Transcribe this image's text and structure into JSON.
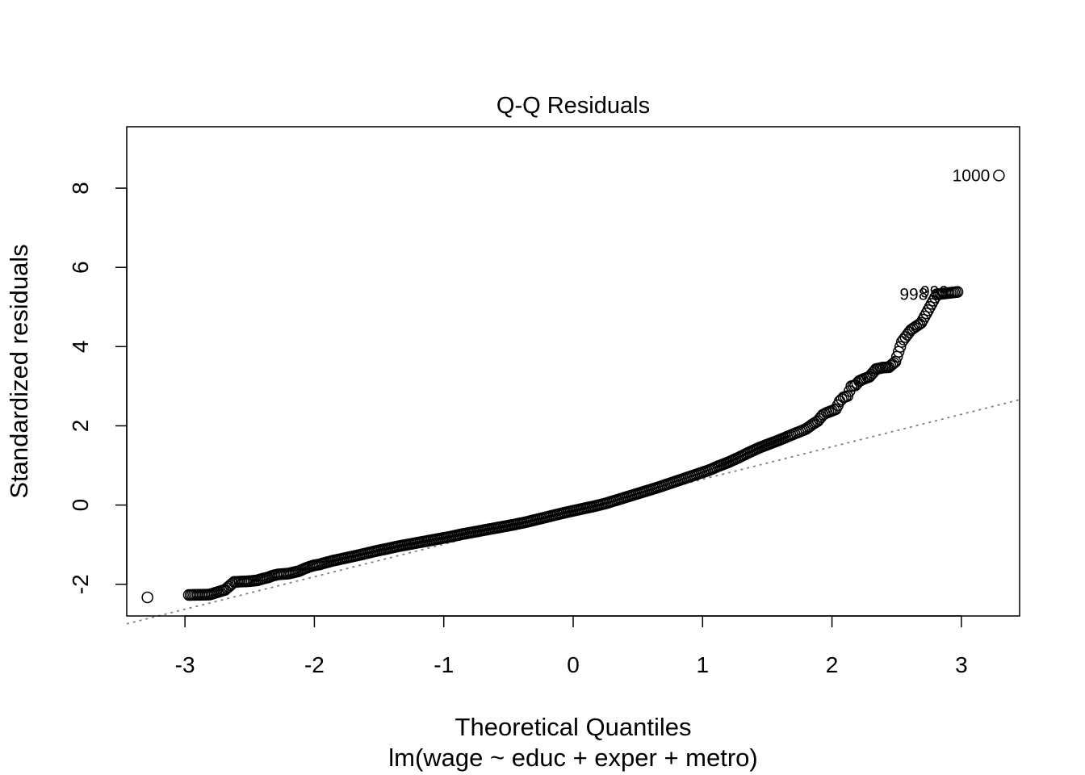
{
  "chart_data": {
    "type": "scatter",
    "title": "Q-Q Residuals",
    "xlabel": "Theoretical Quantiles",
    "subtitle": "lm(wage ~ educ + exper + metro)",
    "ylabel": "Standardized residuals",
    "xlim": [
      -3.45,
      3.45
    ],
    "ylim": [
      -2.8,
      9.55
    ],
    "x_ticks": [
      -3,
      -2,
      -1,
      0,
      1,
      2,
      3
    ],
    "x_tick_labels": [
      "-3",
      "-2",
      "-1",
      "0",
      "1",
      "2",
      "3"
    ],
    "y_ticks": [
      -2,
      0,
      2,
      4,
      6,
      8
    ],
    "y_tick_labels": [
      "-2",
      "0",
      "2",
      "4",
      "6",
      "8"
    ],
    "grid": false,
    "legend": "none",
    "reference_line": {
      "intercept": -0.17,
      "slope": 0.82,
      "style": "dotted",
      "color": "#808080"
    },
    "labeled_points": [
      {
        "label": "1000",
        "x": 3.29,
        "y": 8.32
      },
      {
        "label": "999",
        "x": 2.97,
        "y": 5.38
      },
      {
        "label": "998",
        "x": 2.81,
        "y": 5.32
      }
    ],
    "series": [
      {
        "points": [
          [
            -3.29,
            -2.33
          ],
          [
            -2.97,
            -2.27
          ],
          [
            -2.81,
            -2.26
          ],
          [
            -2.69,
            -2.14
          ],
          [
            -2.62,
            -1.94
          ],
          [
            -2.55,
            -1.93
          ],
          [
            -2.5,
            -1.92
          ],
          [
            -2.44,
            -1.9
          ],
          [
            -2.4,
            -1.86
          ],
          [
            -2.36,
            -1.83
          ],
          [
            -2.32,
            -1.78
          ],
          [
            -2.28,
            -1.75
          ],
          [
            -2.24,
            -1.74
          ],
          [
            -2.2,
            -1.73
          ],
          [
            -2.16,
            -1.7
          ],
          [
            -2.12,
            -1.67
          ],
          [
            -2.08,
            -1.61
          ],
          [
            -2.04,
            -1.56
          ],
          [
            -2.0,
            -1.52
          ],
          [
            -1.96,
            -1.5
          ],
          [
            -1.92,
            -1.46
          ],
          [
            -1.85,
            -1.4
          ],
          [
            -1.75,
            -1.33
          ],
          [
            -1.65,
            -1.26
          ],
          [
            -1.55,
            -1.18
          ],
          [
            -1.45,
            -1.11
          ],
          [
            -1.35,
            -1.04
          ],
          [
            -1.25,
            -0.98
          ],
          [
            -1.15,
            -0.92
          ],
          [
            -1.05,
            -0.86
          ],
          [
            -0.95,
            -0.8
          ],
          [
            -0.85,
            -0.73
          ],
          [
            -0.75,
            -0.67
          ],
          [
            -0.65,
            -0.61
          ],
          [
            -0.55,
            -0.55
          ],
          [
            -0.45,
            -0.49
          ],
          [
            -0.35,
            -0.42
          ],
          [
            -0.25,
            -0.34
          ],
          [
            -0.15,
            -0.26
          ],
          [
            -0.05,
            -0.18
          ],
          [
            0.05,
            -0.11
          ],
          [
            0.15,
            -0.04
          ],
          [
            0.25,
            0.04
          ],
          [
            0.35,
            0.14
          ],
          [
            0.45,
            0.24
          ],
          [
            0.55,
            0.34
          ],
          [
            0.65,
            0.44
          ],
          [
            0.75,
            0.55
          ],
          [
            0.85,
            0.66
          ],
          [
            0.95,
            0.77
          ],
          [
            1.05,
            0.88
          ],
          [
            1.12,
            0.98
          ],
          [
            1.2,
            1.08
          ],
          [
            1.28,
            1.2
          ],
          [
            1.36,
            1.33
          ],
          [
            1.44,
            1.45
          ],
          [
            1.52,
            1.55
          ],
          [
            1.6,
            1.65
          ],
          [
            1.68,
            1.76
          ],
          [
            1.74,
            1.84
          ],
          [
            1.8,
            1.92
          ],
          [
            1.85,
            2.04
          ],
          [
            1.89,
            2.12
          ],
          [
            1.93,
            2.28
          ],
          [
            1.96,
            2.33
          ],
          [
            2.0,
            2.38
          ],
          [
            2.03,
            2.42
          ],
          [
            2.06,
            2.62
          ],
          [
            2.09,
            2.72
          ],
          [
            2.12,
            2.75
          ],
          [
            2.15,
            3.0
          ],
          [
            2.18,
            3.02
          ],
          [
            2.21,
            3.13
          ],
          [
            2.25,
            3.19
          ],
          [
            2.29,
            3.24
          ],
          [
            2.34,
            3.43
          ],
          [
            2.39,
            3.47
          ],
          [
            2.44,
            3.48
          ],
          [
            2.49,
            3.62
          ],
          [
            2.54,
            4.12
          ],
          [
            2.61,
            4.42
          ],
          [
            2.69,
            4.6
          ],
          [
            2.81,
            5.32
          ],
          [
            2.97,
            5.38
          ],
          [
            3.29,
            8.32
          ]
        ]
      }
    ]
  }
}
